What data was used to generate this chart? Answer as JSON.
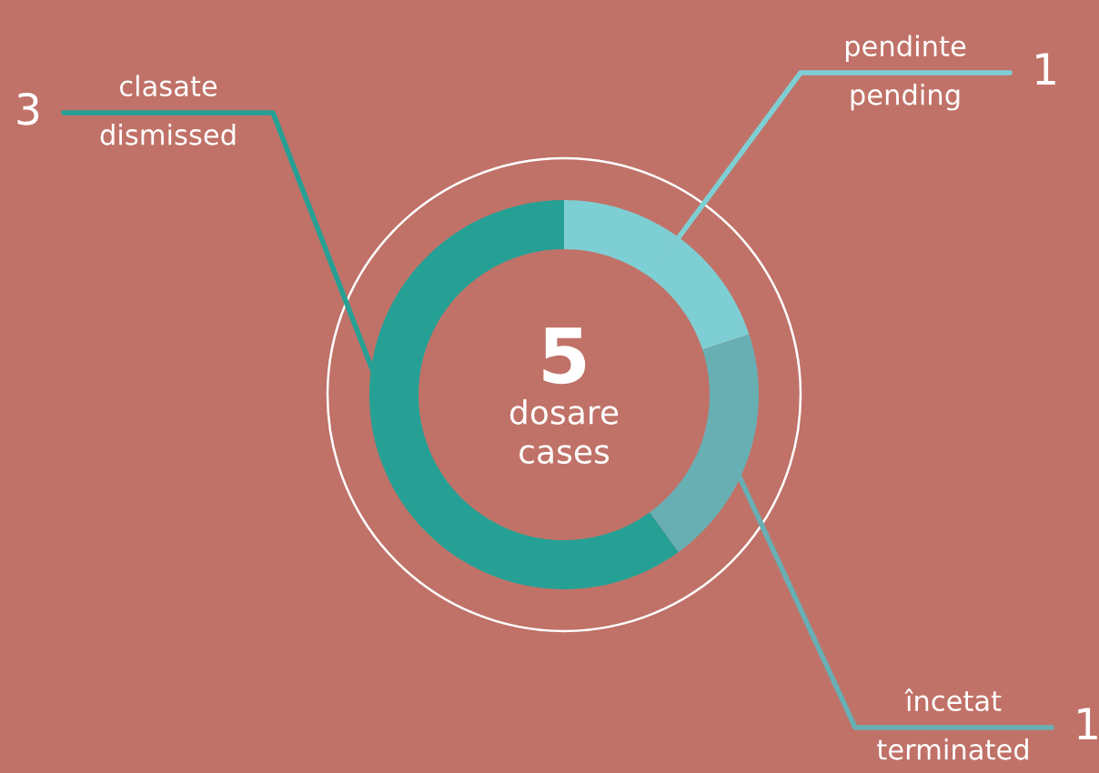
{
  "chart_data": {
    "type": "donut",
    "categories": [
      "pendinte\npending",
      "încetat\nterminated",
      "clasate\ndismissed"
    ],
    "values": [
      1,
      1,
      3
    ],
    "colors": [
      "#7ecfd4",
      "#68afb4",
      "#26a095"
    ],
    "data_labels": true,
    "annotations": [
      "5",
      "dosare\ncases"
    ]
  }
}
